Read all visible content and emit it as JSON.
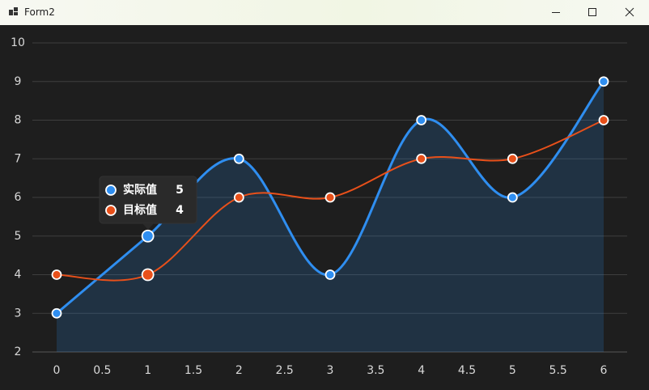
{
  "window": {
    "title": "Form2"
  },
  "chart_data": {
    "type": "line",
    "x": [
      0,
      1,
      2,
      3,
      4,
      5,
      6
    ],
    "series": [
      {
        "name": "实际值",
        "color": "#2f8ef0",
        "values": [
          3,
          5,
          7,
          4,
          8,
          6,
          9
        ],
        "area": true
      },
      {
        "name": "目标值",
        "color": "#e8501a",
        "values": [
          4,
          4,
          6,
          6,
          7,
          7,
          8
        ],
        "area": false
      }
    ],
    "xlim": [
      0,
      6
    ],
    "xticks": [
      0,
      0.5,
      1,
      1.5,
      2,
      2.5,
      3,
      3.5,
      4,
      4.5,
      5,
      5.5,
      6
    ],
    "ylim": [
      2,
      10
    ],
    "yticks": [
      2,
      3,
      4,
      5,
      6,
      7,
      8,
      9,
      10
    ],
    "grid": true,
    "smooth": true
  }
}
